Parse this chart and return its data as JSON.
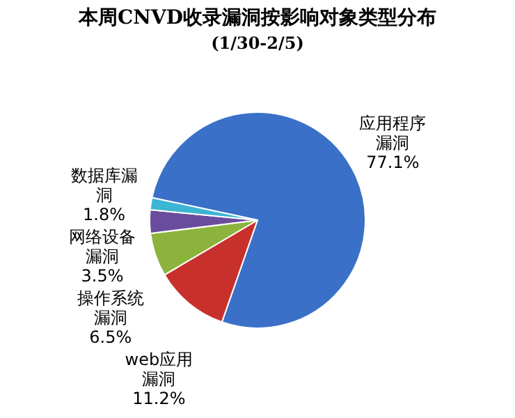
{
  "chart_data": {
    "type": "pie",
    "title": "本周CNVD收录漏洞按影响对象类型分布",
    "subtitle": "(1/30-2/5)",
    "categories": [
      "应用程序漏洞",
      "web应用漏洞",
      "操作系统漏洞",
      "网络设备漏洞",
      "数据库漏洞"
    ],
    "values": [
      77.1,
      11.2,
      6.5,
      3.5,
      1.8
    ],
    "value_labels": [
      "77.1%",
      "11.2%",
      "6.5%",
      "3.5%",
      "1.8%"
    ],
    "colors": [
      "#3a70c8",
      "#c8302c",
      "#8cb43c",
      "#6a4c9c",
      "#3cb4d4"
    ],
    "legend": false
  }
}
